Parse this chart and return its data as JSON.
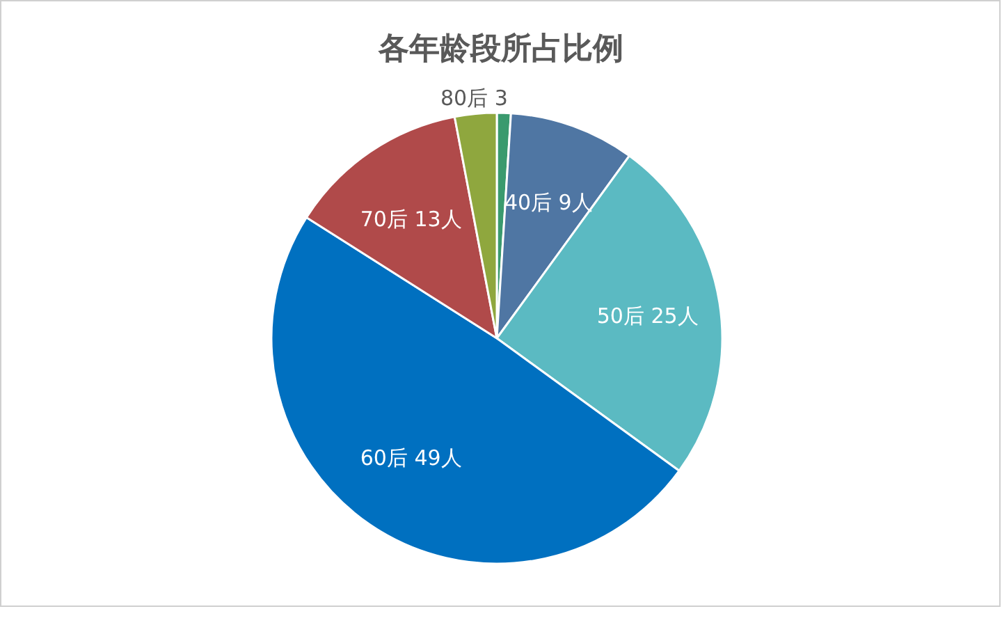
{
  "chart_data": {
    "type": "pie",
    "title": "各年龄段所占比例",
    "categories": [
      null,
      "40后",
      "50后",
      "60后",
      "70后",
      "80后"
    ],
    "values": [
      1,
      9,
      25,
      49,
      13,
      3
    ],
    "value_labels": [
      null,
      "9人",
      "25人",
      "49人",
      "13人",
      "3"
    ],
    "colors": [
      "#3a9a6e",
      "#4f76a3",
      "#5bbac2",
      "#0070c0",
      "#b04a4a",
      "#8fa73e"
    ]
  }
}
